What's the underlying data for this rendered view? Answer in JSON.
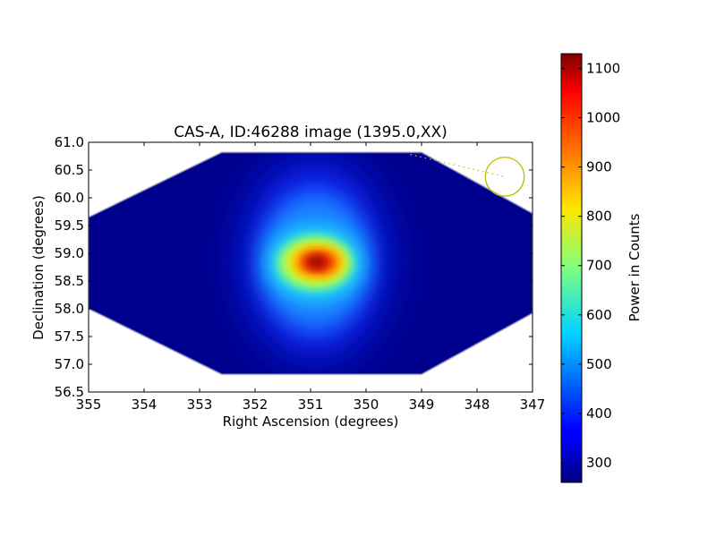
{
  "chart_data": {
    "type": "heatmap",
    "title": "CAS-A, ID:46288 image (1395.0,XX)",
    "xlabel": "Right Ascension (degrees)",
    "ylabel": "Declination (degrees)",
    "xlim": [
      355,
      347
    ],
    "ylim": [
      56.5,
      61.0
    ],
    "x_ticks": [
      355,
      354,
      353,
      352,
      351,
      350,
      349,
      348,
      347
    ],
    "x_tick_labels": [
      "355",
      "354",
      "353",
      "352",
      "351",
      "350",
      "349",
      "348",
      "347"
    ],
    "y_ticks": [
      56.5,
      57.0,
      57.5,
      58.0,
      58.5,
      59.0,
      59.5,
      60.0,
      60.5,
      61.0
    ],
    "y_tick_labels": [
      "56.5",
      "57.0",
      "57.5",
      "58.0",
      "58.5",
      "59.0",
      "59.5",
      "60.0",
      "60.5",
      "61.0"
    ],
    "colorbar": {
      "label": "Power in Counts",
      "range": [
        260,
        1130
      ],
      "ticks": [
        300,
        400,
        500,
        600,
        700,
        800,
        900,
        1000,
        1100
      ],
      "tick_labels": [
        "300",
        "400",
        "500",
        "600",
        "700",
        "800",
        "900",
        "1000",
        "1100"
      ],
      "colormap": "jet"
    },
    "background_level": 265,
    "peak": {
      "ra": 350.9,
      "dec": 58.85,
      "value": 1130
    },
    "coverage_polygon": [
      [
        355.0,
        59.65
      ],
      [
        352.6,
        60.82
      ],
      [
        349.0,
        60.82
      ],
      [
        347.0,
        59.72
      ],
      [
        347.0,
        57.92
      ],
      [
        349.0,
        56.82
      ],
      [
        352.6,
        56.82
      ],
      [
        355.0,
        58.0
      ]
    ],
    "marker": {
      "type": "circle",
      "ra": 347.5,
      "dec": 60.38,
      "radius_deg": 0.35,
      "color": "#bfbf00"
    },
    "marker_path": {
      "from": [
        349.2,
        60.78
      ],
      "to": [
        347.5,
        60.38
      ],
      "style": "dotted",
      "color": "#bfbf00"
    }
  }
}
